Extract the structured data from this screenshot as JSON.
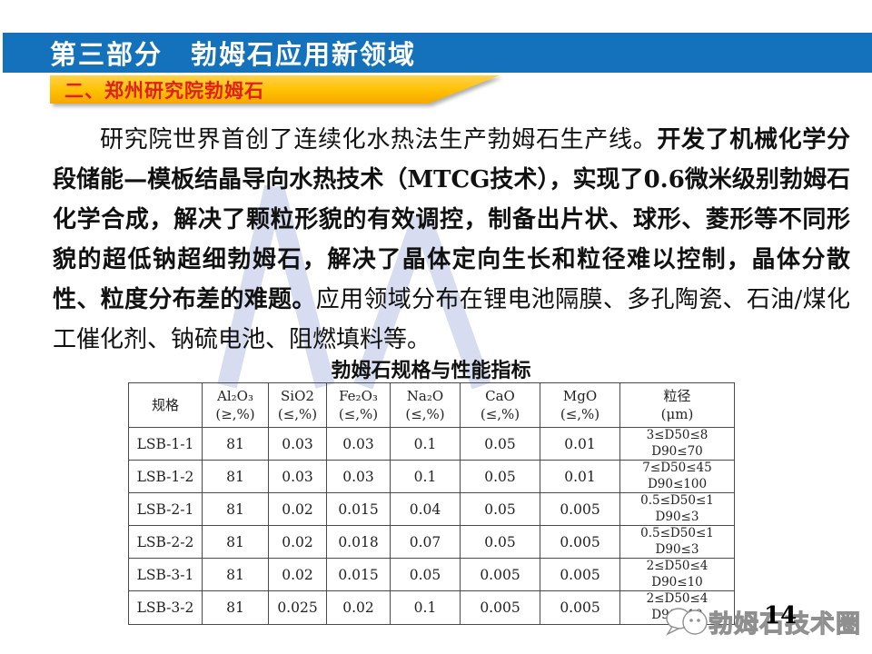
{
  "header": {
    "title": "第三部分　勃姆石应用新领域"
  },
  "banner": {
    "label": "二、郑州研究院勃姆石"
  },
  "paragraph": {
    "seg1": "研究院世界首创了连续化水热法生产勃姆石生产线。",
    "seg2": "开发了机械化学分段储能—模板结晶导向水热技术（MTCG技术），实现了0.6微米级别勃姆石化学合成，解决了颗粒形貌的有效调控，制备出片状、球形、菱形等不同形貌的超低钠超细勃姆石，解决了晶体定向生长和粒径难以控制，晶体分散性、粒度分布差的难题。",
    "seg3": "应用领域分布在锂电池隔膜、多孔陶瓷、石油/煤化工催化剂、钠硫电池、阻燃填料等。"
  },
  "table": {
    "title": "勃姆石规格与性能指标",
    "columns": [
      {
        "formula": "规格",
        "constraint": ""
      },
      {
        "formula": "Al₂O₃",
        "constraint": "(≥,%)"
      },
      {
        "formula": "SiO2",
        "constraint": "(≤,%)"
      },
      {
        "formula": "Fe₂O₃",
        "constraint": "(≤,%)"
      },
      {
        "formula": "Na₂O",
        "constraint": "(≤,%)"
      },
      {
        "formula": "CaO",
        "constraint": "(≤,%)"
      },
      {
        "formula": "MgO",
        "constraint": "(≤,%)"
      },
      {
        "formula": "粒径",
        "constraint": "(μm)"
      }
    ],
    "rows": [
      [
        "LSB-1-1",
        "81",
        "0.03",
        "0.03",
        "0.1",
        "0.05",
        "0.01",
        "3≤D50≤8\nD90≤70"
      ],
      [
        "LSB-1-2",
        "81",
        "0.03",
        "0.03",
        "0.1",
        "0.05",
        "0.01",
        "7≤D50≤45\nD90≤100"
      ],
      [
        "LSB-2-1",
        "81",
        "0.02",
        "0.015",
        "0.04",
        "0.05",
        "0.005",
        "0.5≤D50≤1\nD90≤3"
      ],
      [
        "LSB-2-2",
        "81",
        "0.02",
        "0.018",
        "0.07",
        "0.05",
        "0.005",
        "0.5≤D50≤1\nD90≤3"
      ],
      [
        "LSB-3-1",
        "81",
        "0.02",
        "0.015",
        "0.05",
        "0.005",
        "0.005",
        "2≤D50≤4\nD90≤10"
      ],
      [
        "LSB-3-2",
        "81",
        "0.025",
        "0.02",
        "0.1",
        "0.005",
        "0.005",
        "2≤D50≤4\nD90≤10"
      ]
    ]
  },
  "footer": {
    "watermark_text": "勃姆石技术圈",
    "page_number": "14"
  },
  "colors": {
    "header_bar_blue": "#1472bd",
    "banner_yellow": "#ffc000",
    "banner_text_red": "#e01e1e",
    "watermark_blue": "#a7b3df",
    "table_border": "#4a4a4a",
    "footer_watermark_gray": "#8f8f8f"
  }
}
